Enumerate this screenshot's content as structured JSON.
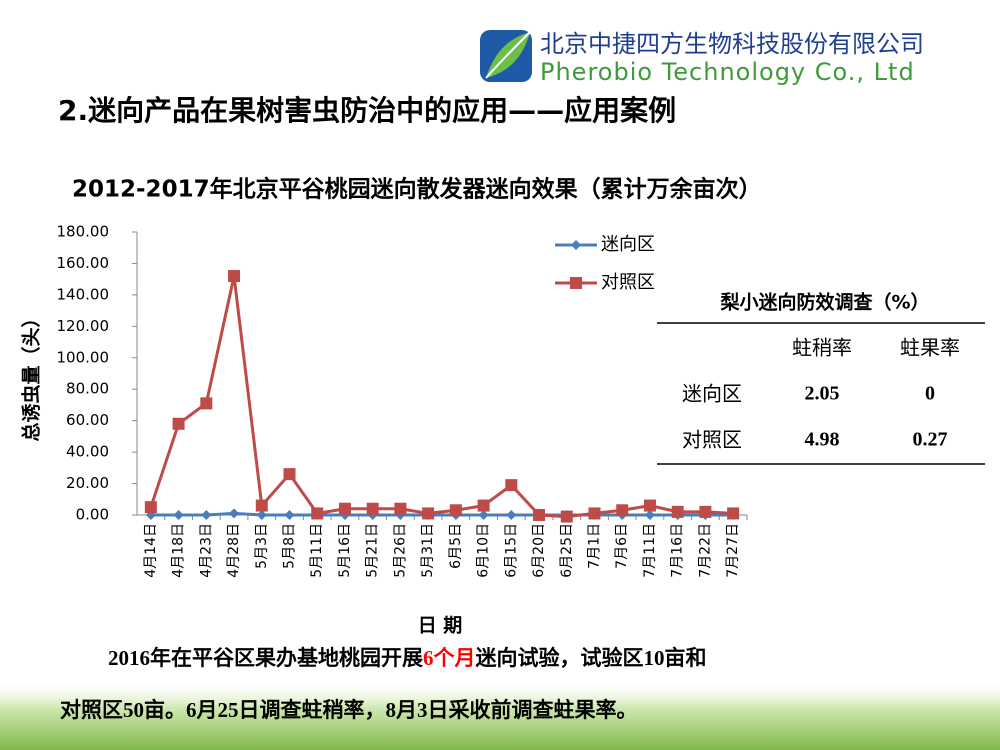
{
  "header": {
    "company_cn": "北京中捷四方生物科技股份有限公司",
    "company_en": "Pherobio Technology Co., Ltd",
    "title": "2.迷向产品在果树害虫防治中的应用——应用案例"
  },
  "chart_data": {
    "type": "line",
    "title": "2012-2017年北京平谷桃园迷向散发器迷向效果（累计万余亩次）",
    "y_label": "总诱虫量（头）",
    "x_label": "日 期",
    "categories": [
      "4月14日",
      "4月18日",
      "4月23日",
      "4月28日",
      "5月3日",
      "5月8日",
      "5月11日",
      "5月16日",
      "5月21日",
      "5月26日",
      "5月31日",
      "6月5日",
      "6月10日",
      "6月15日",
      "6月20日",
      "6月25日",
      "7月1日",
      "7月6日",
      "7月11日",
      "7月16日",
      "7月22日",
      "7月27日"
    ],
    "series": [
      {
        "name": "迷向区",
        "color": "#4a7ebb",
        "marker": "diamond",
        "values": [
          0,
          0,
          0,
          1,
          0,
          0,
          0,
          0,
          0,
          0,
          0,
          0,
          0,
          0,
          0,
          0,
          0,
          0,
          0,
          0,
          0,
          0
        ]
      },
      {
        "name": "对照区",
        "color": "#be4b48",
        "marker": "square",
        "values": [
          5,
          58,
          71,
          152,
          6,
          26,
          1,
          4,
          4,
          4,
          1,
          3,
          6,
          19,
          0,
          -1,
          1,
          3,
          6,
          2,
          2,
          1
        ]
      }
    ],
    "ylim": [
      0,
      180
    ],
    "yticks": [
      {
        "value": 0,
        "label": "0.00"
      },
      {
        "value": 20,
        "label": "20.00"
      },
      {
        "value": 40,
        "label": "40.00"
      },
      {
        "value": 60,
        "label": "60.00"
      },
      {
        "value": 80,
        "label": "80.00"
      },
      {
        "value": 100,
        "label": "100.00"
      },
      {
        "value": 120,
        "label": "120.00"
      },
      {
        "value": 140,
        "label": "140.00"
      },
      {
        "value": 160,
        "label": "160.00"
      },
      {
        "value": 180,
        "label": "180.00"
      }
    ],
    "grid": false,
    "legend": "upper right"
  },
  "table": {
    "title": "梨小迷向防效调查（%）",
    "columns": [
      "蛀稍率",
      "蛀果率"
    ],
    "rows": [
      [
        "迷向区",
        2.05,
        0
      ],
      [
        "对照区",
        4.98,
        0.27
      ]
    ]
  },
  "footer": {
    "line1": [
      "2016年在平谷区果办基地桃园开展",
      "6个月",
      "迷向试验，试验区10亩和"
    ],
    "line2": "对照区50亩。6月25日调查蛀稍率，8月3日采收前调查蛀果率。"
  }
}
